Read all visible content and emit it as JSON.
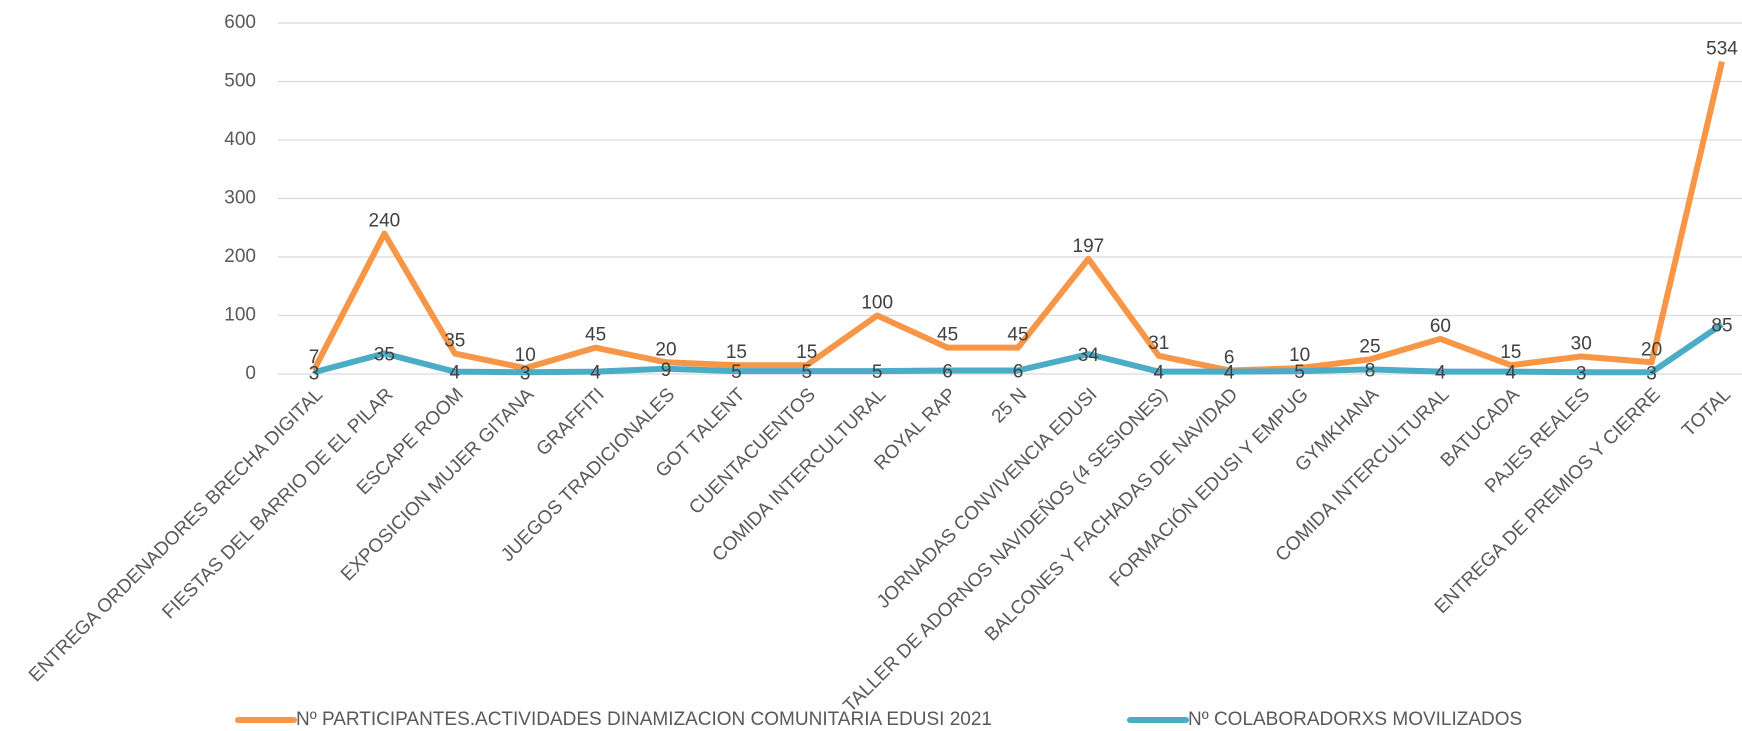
{
  "chart_data": {
    "type": "line",
    "categories": [
      "ENTREGA ORDENADORES BRECHA DIGITAL",
      "FIESTAS DEL BARRIO DE EL PILAR",
      "ESCAPE ROOM",
      "EXPOSICION MUJER GITANA",
      "GRAFFITI",
      "JUEGOS TRADICIONALES",
      "GOT TALENT",
      "CUENTACUENTOS",
      "COMIDA INTERCULTURAL",
      "ROYAL RAP",
      "25 N",
      "JORNADAS CONVIVENCIA EDUSI",
      "TALLER DE ADORNOS NAVIDEÑOS (4 SESIONES)",
      "BALCONES Y FACHADAS DE NAVIDAD",
      "FORMACIÓN EDUSI Y EMPUG",
      "GYMKHANA",
      "COMIDA INTERCULTURAL",
      "BATUCADA",
      "PAJES REALES",
      "ENTREGA DE PREMIOS Y CIERRE",
      "TOTAL"
    ],
    "series": [
      {
        "name": "Nº PARTICIPANTES.ACTIVIDADES DINAMIZACION COMUNITARIA EDUSI 2021",
        "color": "#f79646",
        "values": [
          7,
          240,
          35,
          10,
          45,
          20,
          15,
          15,
          100,
          45,
          45,
          197,
          31,
          6,
          10,
          25,
          60,
          15,
          30,
          20,
          534
        ]
      },
      {
        "name": "Nº COLABORADORXS MOVILIZADOS",
        "color": "#4bacc6",
        "values": [
          3,
          35,
          4,
          3,
          4,
          9,
          5,
          5,
          5,
          6,
          6,
          34,
          4,
          4,
          5,
          8,
          4,
          4,
          3,
          3,
          85
        ]
      }
    ],
    "ylim": [
      0,
      600
    ],
    "yticks": [
      0,
      100,
      200,
      300,
      400,
      500,
      600
    ],
    "grid": true,
    "legend": "bottom"
  }
}
